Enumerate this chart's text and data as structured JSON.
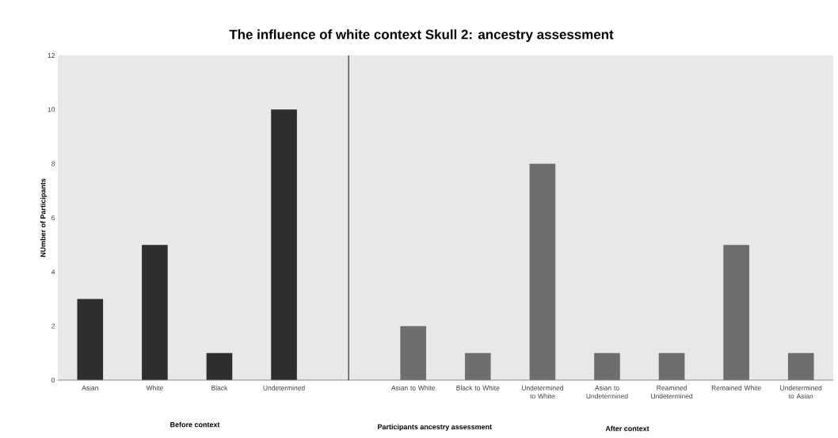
{
  "chart_data": {
    "type": "bar",
    "title": "The influence of white context Skull 2: ancestry assessment",
    "categories": [
      "Asian",
      "White",
      "Black",
      "Undetermined",
      null,
      "Asian to White",
      "Black to White",
      "Undetermined to White",
      "Asian to Undetermined",
      "Reamined Undetermined",
      "Remained White",
      "Undetermined to Asian"
    ],
    "values": [
      3,
      5,
      1,
      10,
      null,
      2,
      1,
      8,
      1,
      1,
      5,
      1
    ],
    "colors": [
      "#2e2e2e",
      "#2e2e2e",
      "#2e2e2e",
      "#2e2e2e",
      null,
      "#6e6e6e",
      "#6e6e6e",
      "#6e6e6e",
      "#6e6e6e",
      "#6e6e6e",
      "#6e6e6e",
      "#6e6e6e"
    ],
    "xlabel": "Participants ancestry assessment",
    "ylabel": "NUmber of Participants",
    "ylim": [
      0,
      12
    ],
    "yticks": [
      0,
      2,
      4,
      6,
      8,
      10,
      12
    ],
    "annotations": [
      "Before context",
      "After context"
    ]
  }
}
